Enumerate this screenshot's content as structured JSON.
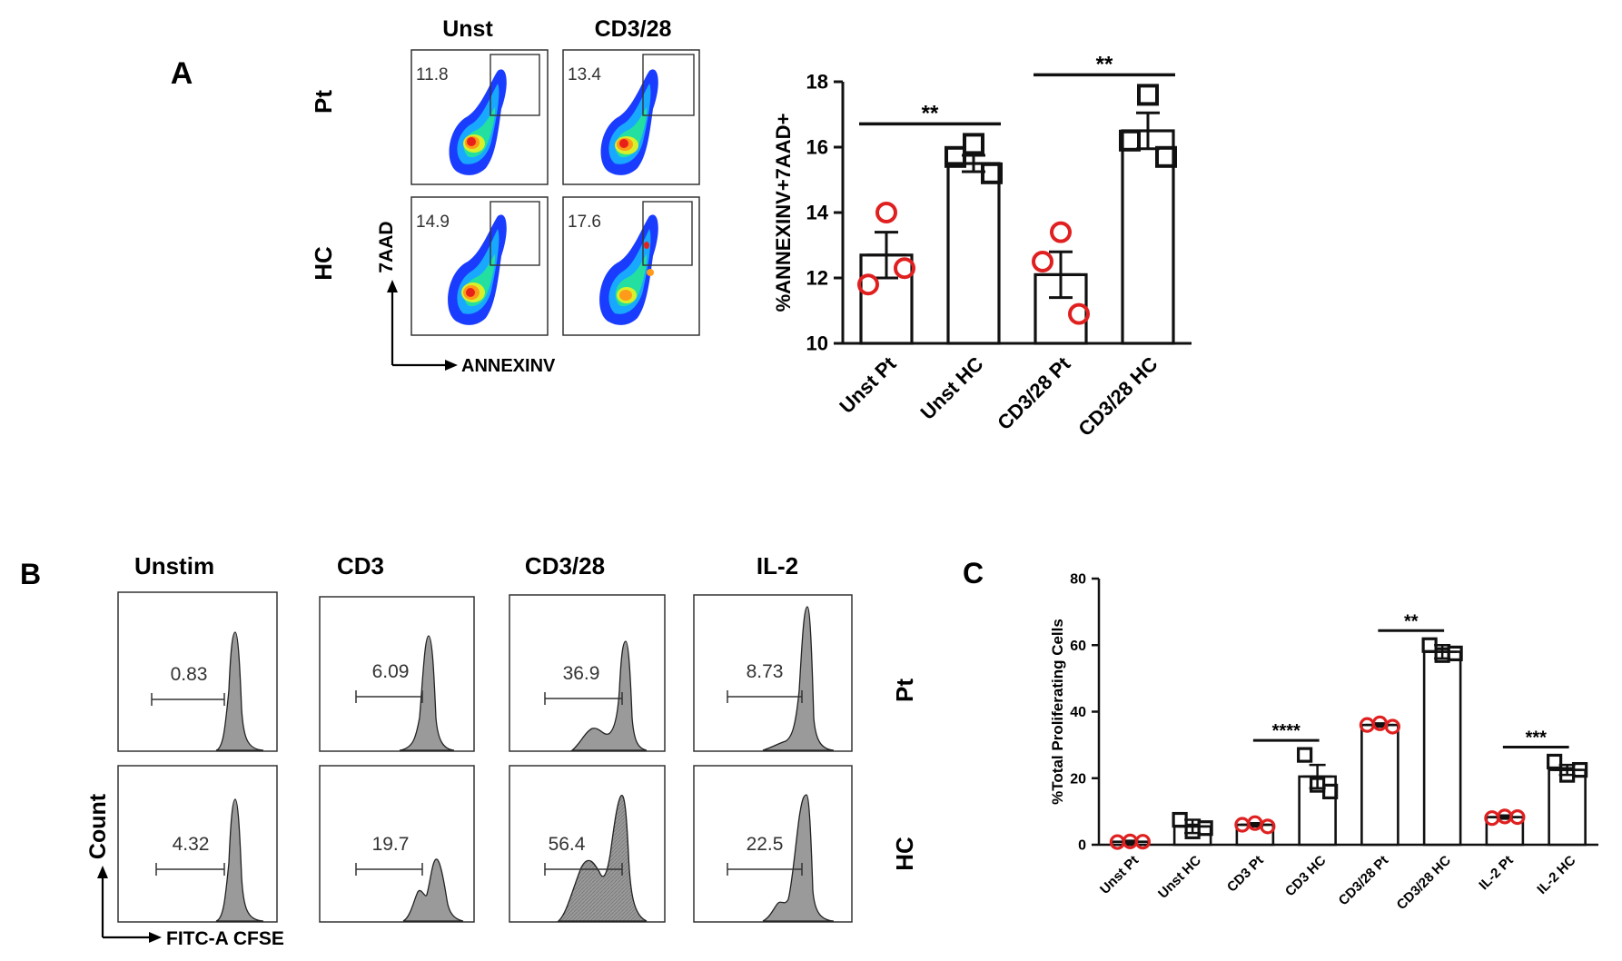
{
  "colors": {
    "red": "#e02020",
    "black": "#111111",
    "gray_fill": "#9a9a9a",
    "density_ramp": [
      "#1a3cff",
      "#19a8ff",
      "#23e0a0",
      "#d8f02a",
      "#ff9a1a",
      "#e8201a"
    ]
  },
  "panelA": {
    "label": "A",
    "flow": {
      "col_labels": [
        "Unst",
        "CD3/28"
      ],
      "row_labels": [
        "Pt",
        "HC"
      ],
      "gate_values": [
        [
          "11.8",
          "13.4"
        ],
        [
          "14.9",
          "17.6"
        ]
      ],
      "y_axis_label": "7AAD",
      "x_axis_label": "ANNEXINV"
    }
  },
  "panelB": {
    "label": "B",
    "col_labels": [
      "Unstim",
      "CD3",
      "CD3/28",
      "IL-2"
    ],
    "row_labels": [
      "Pt",
      "HC"
    ],
    "gate_values": [
      [
        "0.83",
        "6.09",
        "36.9",
        "8.73"
      ],
      [
        "4.32",
        "19.7",
        "56.4",
        "22.5"
      ]
    ],
    "y_axis_label": "Count",
    "x_axis_label": "FITC-A CFSE"
  },
  "panelC": {
    "label": "C"
  },
  "chart_data": [
    {
      "type": "bar",
      "panel": "A",
      "title": "",
      "ylabel": "%ANNEXINV+7AAD+",
      "xlabel": "",
      "ylim": [
        10,
        18
      ],
      "yticks": [
        "10",
        "12",
        "14",
        "16",
        "18"
      ],
      "categories": [
        "Unst Pt",
        "Unst HC",
        "CD3/28 Pt",
        "CD3/28 HC"
      ],
      "values": [
        12.7,
        15.5,
        12.1,
        16.5
      ],
      "errors": [
        0.7,
        0.25,
        0.7,
        0.55
      ],
      "points": [
        [
          14.0,
          11.8,
          12.3
        ],
        [
          16.1,
          15.7,
          15.2
        ],
        [
          13.4,
          12.5,
          10.9
        ],
        [
          17.6,
          16.2,
          15.7
        ]
      ],
      "point_markers": [
        "circle",
        "square",
        "circle",
        "square"
      ],
      "significance": [
        {
          "from": 0,
          "to": 1,
          "label": "**"
        },
        {
          "from": 2,
          "to": 3,
          "label": "**"
        }
      ]
    },
    {
      "type": "bar",
      "panel": "C",
      "title": "",
      "ylabel": "%Total Proliferating Cells",
      "xlabel": "",
      "ylim": [
        0,
        80
      ],
      "yticks": [
        "0",
        "20",
        "40",
        "60",
        "80"
      ],
      "categories": [
        "Unst Pt",
        "Unst HC",
        "CD3 Pt",
        "CD3 HC",
        "CD3/28 Pt",
        "CD3/28 HC",
        "IL-2 Pt",
        "IL-2 HC"
      ],
      "values": [
        0.9,
        5.5,
        6.0,
        20.5,
        36.0,
        58.0,
        8.3,
        22.5
      ],
      "errors": [
        0.3,
        2.0,
        0.5,
        3.5,
        0.5,
        2.0,
        0.5,
        1.5
      ],
      "points": [
        [
          0.8,
          1.0,
          0.9
        ],
        [
          7.5,
          4.0,
          5.0
        ],
        [
          6.0,
          6.5,
          5.5
        ],
        [
          27.0,
          18.0,
          16.0
        ],
        [
          36.0,
          36.5,
          35.5
        ],
        [
          60.0,
          57.0,
          57.5
        ],
        [
          8.0,
          8.5,
          8.3
        ],
        [
          25.0,
          21.0,
          22.5
        ]
      ],
      "point_markers": [
        "circle",
        "square",
        "circle",
        "square",
        "circle",
        "square",
        "circle",
        "square"
      ],
      "significance": [
        {
          "from": 2,
          "to": 3,
          "label": "****"
        },
        {
          "from": 4,
          "to": 5,
          "label": "**"
        },
        {
          "from": 6,
          "to": 7,
          "label": "***"
        }
      ]
    }
  ]
}
